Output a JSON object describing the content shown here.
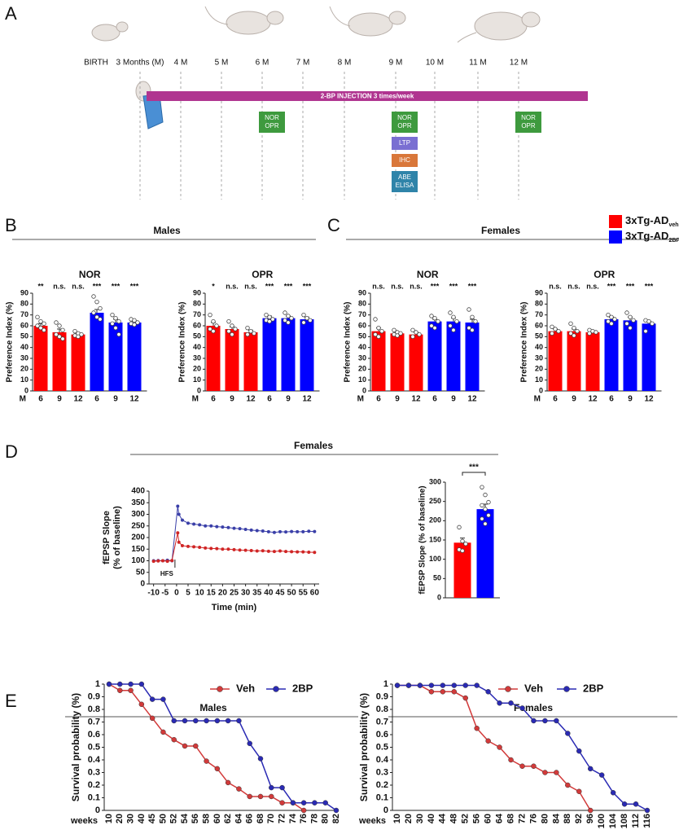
{
  "panel_labels": [
    "A",
    "B",
    "C",
    "D",
    "E"
  ],
  "timeline": {
    "ticks": [
      "BIRTH",
      "3 Months (M)",
      "4 M",
      "5 M",
      "6 M",
      "7 M",
      "8 M",
      "9 M",
      "10 M",
      "11 M",
      "12 M"
    ],
    "bar": "2-BP INJECTION 3 times/week",
    "bar_color": "#b03590",
    "box_columns": [
      [
        {
          "lines": [
            "NOR",
            "OPR"
          ],
          "color": "#3e9a3e"
        }
      ],
      [
        {
          "lines": [
            "NOR",
            "OPR"
          ],
          "color": "#3e9a3e"
        },
        {
          "lines": [
            "LTP"
          ],
          "color": "#7a6fd2"
        },
        {
          "lines": [
            "IHC"
          ],
          "color": "#d9773a"
        },
        {
          "lines": [
            "ABE",
            "ELISA"
          ],
          "color": "#2f84a9"
        }
      ],
      [
        {
          "lines": [
            "NOR",
            "OPR"
          ],
          "color": "#3e9a3e"
        }
      ]
    ]
  },
  "sections": [
    "Males",
    "Females",
    "Females",
    "Males",
    "Females"
  ],
  "legend": [
    {
      "name": "3xTg-AD",
      "subscript": "veh",
      "color": "#ff0000"
    },
    {
      "name": "3xTg-AD",
      "subscript": "2BP",
      "color": "#0000ff"
    }
  ],
  "chart_data": [
    {
      "type": "bar",
      "title": "NOR",
      "y_label": "Preference Index (%)",
      "x_prefix": "M",
      "categories": [
        "6",
        "9",
        "12",
        "6",
        "9",
        "12"
      ],
      "values": [
        60,
        54,
        52,
        72,
        63,
        63
      ],
      "errors": [
        2,
        3,
        1,
        3,
        3,
        1
      ],
      "points": [
        [
          68,
          64,
          62,
          60,
          58,
          56
        ],
        [
          63,
          60,
          56,
          52,
          50,
          48
        ],
        [
          55,
          53,
          52,
          51,
          50
        ],
        [
          87,
          82,
          76,
          72,
          68,
          66
        ],
        [
          70,
          67,
          64,
          62,
          58,
          52
        ],
        [
          66,
          65,
          63,
          62,
          61
        ]
      ],
      "colors": [
        "#ff0000",
        "#ff0000",
        "#ff0000",
        "#0000ff",
        "#0000ff",
        "#0000ff"
      ],
      "annotations": [
        "**",
        "n.s.",
        "n.s.",
        "***",
        "***",
        "***"
      ],
      "ylim": [
        0,
        90
      ],
      "yticks": [
        0,
        10,
        20,
        30,
        40,
        50,
        60,
        70,
        80,
        90
      ]
    },
    {
      "type": "bar",
      "title": "OPR",
      "y_label": "Preference Index (%)",
      "x_prefix": "M",
      "categories": [
        "6",
        "9",
        "12",
        "6",
        "9",
        "12"
      ],
      "values": [
        60,
        57,
        54,
        67,
        67,
        66
      ],
      "errors": [
        3,
        2,
        2,
        2,
        2,
        2
      ],
      "points": [
        [
          70,
          64,
          60,
          57,
          55
        ],
        [
          64,
          60,
          57,
          55,
          52
        ],
        [
          58,
          55,
          53,
          52
        ],
        [
          70,
          68,
          66,
          65,
          64
        ],
        [
          72,
          69,
          67,
          65,
          63
        ],
        [
          70,
          67,
          65,
          63
        ]
      ],
      "colors": [
        "#ff0000",
        "#ff0000",
        "#ff0000",
        "#0000ff",
        "#0000ff",
        "#0000ff"
      ],
      "annotations": [
        "*",
        "n.s.",
        "n.s.",
        "***",
        "***",
        "***"
      ],
      "ylim": [
        0,
        90
      ],
      "yticks": [
        0,
        10,
        20,
        30,
        40,
        50,
        60,
        70,
        80,
        90
      ]
    },
    {
      "type": "bar",
      "title": "NOR",
      "y_label": "Preference Index (%)",
      "x_prefix": "M",
      "categories": [
        "6",
        "9",
        "12",
        "6",
        "9",
        "12"
      ],
      "values": [
        55,
        53,
        52,
        64,
        64,
        63
      ],
      "errors": [
        3,
        1,
        2,
        2,
        3,
        3
      ],
      "points": [
        [
          66,
          58,
          55,
          52,
          50
        ],
        [
          56,
          54,
          53,
          52,
          51
        ],
        [
          56,
          54,
          52,
          50
        ],
        [
          69,
          67,
          64,
          60,
          58
        ],
        [
          72,
          68,
          64,
          60,
          56
        ],
        [
          75,
          68,
          64,
          58,
          56
        ]
      ],
      "colors": [
        "#ff0000",
        "#ff0000",
        "#ff0000",
        "#0000ff",
        "#0000ff",
        "#0000ff"
      ],
      "annotations": [
        "n.s.",
        "n.s.",
        "n.s.",
        "***",
        "***",
        "***"
      ],
      "ylim": [
        0,
        90
      ],
      "yticks": [
        0,
        10,
        20,
        30,
        40,
        50,
        60,
        70,
        80,
        90
      ]
    },
    {
      "type": "bar",
      "title": "OPR",
      "y_label": "Preference Index (%)",
      "x_prefix": "M",
      "categories": [
        "6",
        "9",
        "12",
        "6",
        "9",
        "12"
      ],
      "values": [
        55,
        55,
        54,
        66,
        65,
        62
      ],
      "errors": [
        2,
        2,
        1,
        2,
        3,
        2
      ],
      "points": [
        [
          59,
          57,
          55,
          53
        ],
        [
          62,
          58,
          55,
          53,
          51
        ],
        [
          56,
          55,
          54,
          53
        ],
        [
          70,
          68,
          66,
          64,
          62
        ],
        [
          72,
          68,
          65,
          62,
          58
        ],
        [
          65,
          64,
          62,
          55
        ]
      ],
      "colors": [
        "#ff0000",
        "#ff0000",
        "#ff0000",
        "#0000ff",
        "#0000ff",
        "#0000ff"
      ],
      "annotations": [
        "n.s.",
        "n.s.",
        "n.s.",
        "***",
        "***",
        "***"
      ],
      "ylim": [
        0,
        90
      ],
      "yticks": [
        0,
        10,
        20,
        30,
        40,
        50,
        60,
        70,
        80,
        90
      ]
    },
    {
      "type": "timecourse",
      "y_label": [
        "fEPSP Slope",
        "(% of baseline)"
      ],
      "x_label": "Time (min)",
      "annotation": "HFS",
      "x": [
        -10,
        -8,
        -6,
        -4,
        -2,
        0.5,
        1,
        2.5,
        5,
        7.5,
        10,
        12.5,
        15,
        17.5,
        20,
        22.5,
        25,
        27.5,
        30,
        32.5,
        35,
        37.5,
        40,
        42.5,
        45,
        47.5,
        50,
        52.5,
        55,
        57.5,
        60
      ],
      "series": [
        {
          "color": "#3a3fa8",
          "values": [
            100,
            101,
            100,
            102,
            100,
            335,
            300,
            275,
            262,
            258,
            255,
            250,
            250,
            247,
            245,
            243,
            240,
            238,
            235,
            232,
            230,
            228,
            225,
            222,
            225,
            224,
            226,
            225,
            225,
            227,
            226
          ]
        },
        {
          "color": "#d02525",
          "values": [
            98,
            99,
            100,
            98,
            101,
            220,
            180,
            165,
            162,
            160,
            158,
            155,
            153,
            152,
            150,
            150,
            148,
            146,
            145,
            144,
            142,
            143,
            141,
            140,
            142,
            140,
            139,
            138,
            138,
            137,
            136
          ]
        }
      ],
      "xlim": [
        -12,
        62
      ],
      "xticks": [
        -10,
        -5,
        0,
        5,
        10,
        15,
        20,
        25,
        30,
        35,
        40,
        45,
        50,
        55,
        60
      ],
      "ylim": [
        0,
        400
      ],
      "yticks": [
        0,
        50,
        100,
        150,
        200,
        250,
        300,
        350,
        400
      ]
    },
    {
      "type": "bar",
      "y_label": "fEPSP Slope (% of baseline)",
      "categories": [
        null,
        null
      ],
      "values": [
        143,
        230
      ],
      "errors": [
        12,
        13
      ],
      "points": [
        [
          183,
          147,
          140,
          125,
          122
        ],
        [
          287,
          267,
          248,
          240,
          230,
          214,
          205,
          192
        ]
      ],
      "colors": [
        "#ff0000",
        "#0000ff"
      ],
      "comparison_label": "***",
      "ylim": [
        0,
        300
      ],
      "yticks": [
        0,
        50,
        100,
        150,
        200,
        250,
        300
      ]
    },
    {
      "type": "survival",
      "y_label": "Survival probability (%)",
      "x_prefix": "weeks",
      "categories": [
        "10",
        "20",
        "30",
        "40",
        "45",
        "50",
        "52",
        "54",
        "56",
        "58",
        "60",
        "62",
        "64",
        "66",
        "68",
        "70",
        "72",
        "74",
        "76",
        "78",
        "80",
        "82"
      ],
      "series": [
        {
          "name": "Veh",
          "color": "#d23a3a",
          "values": [
            1,
            0.95,
            0.95,
            0.84,
            0.73,
            0.62,
            0.56,
            0.51,
            0.51,
            0.39,
            0.33,
            0.22,
            0.17,
            0.11,
            0.11,
            0.11,
            0.06,
            0.06,
            0,
            null,
            null,
            null
          ]
        },
        {
          "name": "2BP",
          "color": "#2a2ab4",
          "values": [
            1,
            1,
            1,
            1,
            0.88,
            0.88,
            0.71,
            0.71,
            0.71,
            0.71,
            0.71,
            0.71,
            0.71,
            0.53,
            0.41,
            0.18,
            0.18,
            0.06,
            0.06,
            0.06,
            0.06,
            0
          ]
        }
      ],
      "ylim": [
        0,
        1
      ],
      "yticks": [
        0,
        0.1,
        0.2,
        0.3,
        0.4,
        0.5,
        0.6,
        0.7,
        0.8,
        0.9,
        1
      ]
    },
    {
      "type": "survival",
      "y_label": "Survival probability (%)",
      "x_prefix": "weeks",
      "categories": [
        "10",
        "20",
        "30",
        "40",
        "44",
        "48",
        "52",
        "56",
        "60",
        "64",
        "68",
        "72",
        "76",
        "80",
        "84",
        "88",
        "92",
        "96",
        "100",
        "104",
        "108",
        "112",
        "116"
      ],
      "series": [
        {
          "name": "Veh",
          "color": "#d23a3a",
          "values": [
            0.99,
            0.99,
            0.99,
            0.94,
            0.94,
            0.94,
            0.89,
            0.65,
            0.55,
            0.5,
            0.4,
            0.35,
            0.35,
            0.3,
            0.3,
            0.2,
            0.15,
            0,
            null,
            null,
            null,
            null,
            null
          ]
        },
        {
          "name": "2BP",
          "color": "#2a2ab4",
          "values": [
            0.99,
            0.99,
            0.99,
            0.99,
            0.99,
            0.99,
            0.99,
            0.99,
            0.94,
            0.85,
            0.85,
            0.81,
            0.71,
            0.71,
            0.71,
            0.61,
            0.47,
            0.33,
            0.28,
            0.14,
            0.05,
            0.05,
            0
          ]
        }
      ],
      "ylim": [
        0,
        1
      ],
      "yticks": [
        0,
        0.1,
        0.2,
        0.3,
        0.4,
        0.5,
        0.6,
        0.7,
        0.8,
        0.9,
        1
      ]
    }
  ]
}
